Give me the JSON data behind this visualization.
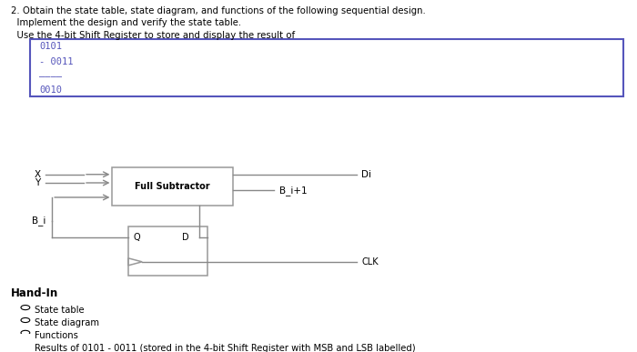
{
  "title_line1": "2. Obtain the state table, state diagram, and functions of the following sequential design.",
  "title_line2": "  Implement the design and verify the state table.",
  "title_line3": "  Use the 4-bit Shift Register to store and display the result of",
  "code_color": "#5555bb",
  "box_border": "#5555bb",
  "label_x": "X",
  "label_y": "Y",
  "label_bi": "B_i",
  "label_di": "Di",
  "label_bi1": "B_i+1",
  "label_fs": "Full Subtractor",
  "label_q": "Q",
  "label_d": "D",
  "label_clk": "CLK",
  "handin_title": "Hand-In",
  "bullet_items": [
    "State table",
    "State diagram",
    "Functions",
    "Results of 0101 - 0011 (stored in the 4-bit Shift Register with MSB and LSB labelled)"
  ],
  "bg_color": "#ffffff",
  "text_color": "#000000",
  "line_color": "#888888"
}
